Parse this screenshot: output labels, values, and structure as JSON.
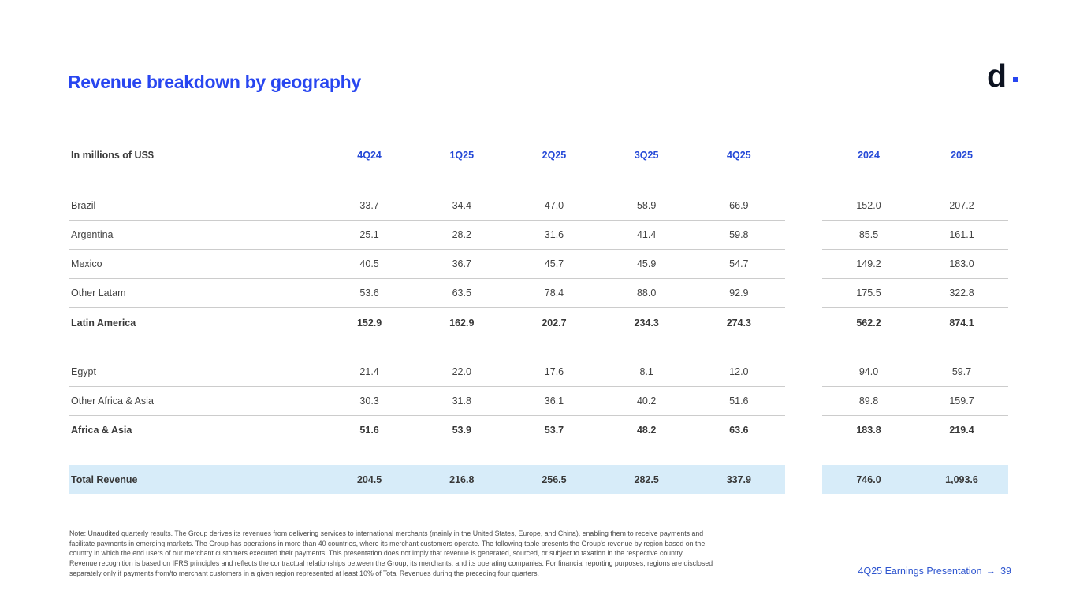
{
  "slide": {
    "title": "Revenue breakdown by geography",
    "logo_letter": "d",
    "footer": {
      "label": "4Q25 Earnings Presentation",
      "arrow": "→",
      "page": "39"
    },
    "note_lines": [
      "Note: Unaudited quarterly results. The Group derives its revenues from delivering services to international merchants (mainly in the United States, Europe, and China), enabling them to receive payments and",
      "facilitate payments in emerging markets. The Group has operations in more than 40 countries, where its merchant customers operate. The following table presents the Group's revenue by region based on the",
      "country in which the end users of our merchant customers executed their payments. This presentation does not imply that revenue is generated, sourced, or subject to taxation in the respective country.",
      "Revenue recognition is based on IFRS principles and reflects the contractual relationships between the Group, its merchants, and its operating companies. For financial reporting purposes, regions are disclosed",
      "separately only if payments from/to merchant customers in a given region represented at least 10% of Total Revenues during the preceding four quarters."
    ]
  },
  "colors": {
    "title_blue": "#2846f0",
    "header_blue": "#2549d7",
    "footer_blue": "#2e55cf",
    "body_text": "#424242",
    "line_gray": "#cccccc",
    "total_row_bg": "#d7ecf9"
  },
  "table": {
    "unit_label": "In millions of US$",
    "quarter_columns": [
      "4Q24",
      "1Q25",
      "2Q25",
      "3Q25",
      "4Q25"
    ],
    "year_columns": [
      "2024",
      "2025"
    ],
    "rows": [
      {
        "label": "Brazil",
        "style": "data",
        "quarters": [
          "33.7",
          "34.4",
          "47.0",
          "58.9",
          "66.9"
        ],
        "years": [
          "152.0",
          "207.2"
        ]
      },
      {
        "label": "Argentina",
        "style": "data",
        "quarters": [
          "25.1",
          "28.2",
          "31.6",
          "41.4",
          "59.8"
        ],
        "years": [
          "85.5",
          "161.1"
        ]
      },
      {
        "label": "Mexico",
        "style": "data",
        "quarters": [
          "40.5",
          "36.7",
          "45.7",
          "45.9",
          "54.7"
        ],
        "years": [
          "149.2",
          "183.0"
        ]
      },
      {
        "label": "Other Latam",
        "style": "data",
        "quarters": [
          "53.6",
          "63.5",
          "78.4",
          "88.0",
          "92.9"
        ],
        "years": [
          "175.5",
          "322.8"
        ]
      },
      {
        "label": "Latin America",
        "style": "subtotal",
        "quarters": [
          "152.9",
          "162.9",
          "202.7",
          "234.3",
          "274.3"
        ],
        "years": [
          "562.2",
          "874.1"
        ]
      },
      {
        "label": "Egypt",
        "style": "data",
        "section_break_before": true,
        "quarters": [
          "21.4",
          "22.0",
          "17.6",
          "8.1",
          "12.0"
        ],
        "years": [
          "94.0",
          "59.7"
        ]
      },
      {
        "label": "Other Africa & Asia",
        "style": "data",
        "quarters": [
          "30.3",
          "31.8",
          "36.1",
          "40.2",
          "51.6"
        ],
        "years": [
          "89.8",
          "159.7"
        ]
      },
      {
        "label": "Africa & Asia",
        "style": "subtotal",
        "quarters": [
          "51.6",
          "53.9",
          "53.7",
          "48.2",
          "63.6"
        ],
        "years": [
          "183.8",
          "219.4"
        ]
      },
      {
        "label": "Total Revenue",
        "style": "total",
        "section_break_before": true,
        "quarters": [
          "204.5",
          "216.8",
          "256.5",
          "282.5",
          "337.9"
        ],
        "years": [
          "746.0",
          "1,093.6"
        ]
      }
    ]
  }
}
